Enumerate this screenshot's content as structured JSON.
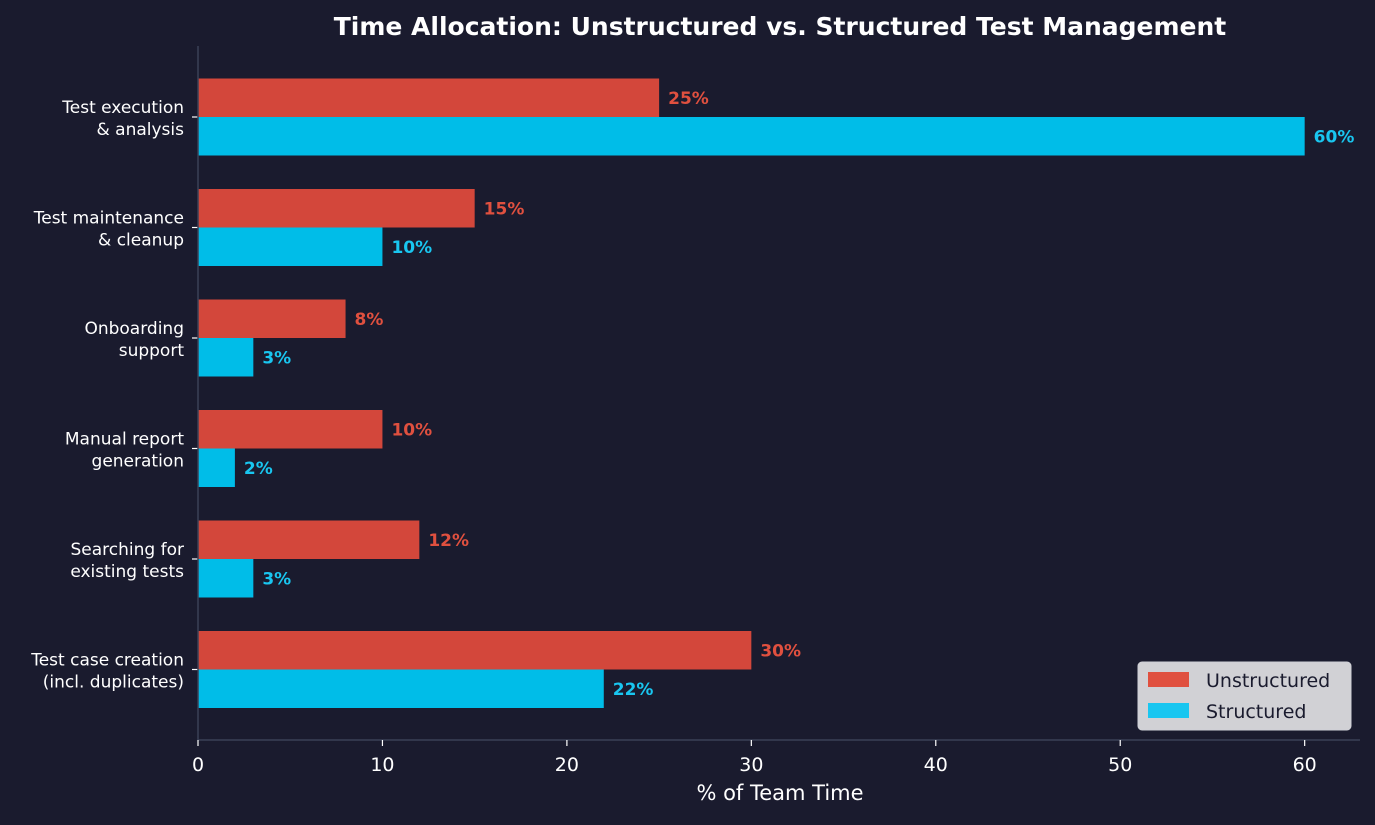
{
  "chart_data": {
    "type": "bar",
    "orientation": "horizontal",
    "title": "Time Allocation: Unstructured vs. Structured Test Management",
    "xlabel": "% of Team Time",
    "ylabel": "",
    "xlim": [
      0,
      63
    ],
    "xticks": [
      0,
      10,
      20,
      30,
      40,
      50,
      60
    ],
    "categories": [
      [
        "Test execution",
        "& analysis"
      ],
      [
        "Test maintenance",
        "& cleanup"
      ],
      [
        "Onboarding",
        "support"
      ],
      [
        "Manual report",
        "generation"
      ],
      [
        "Searching for",
        "existing tests"
      ],
      [
        "Test case creation",
        "(incl. duplicates)"
      ]
    ],
    "series": [
      {
        "name": "Unstructured",
        "color": "#d3473b",
        "label_color": "#e0503f",
        "values": [
          25,
          15,
          8,
          10,
          12,
          30
        ]
      },
      {
        "name": "Structured",
        "color": "#00bde8",
        "label_color": "#19c6f0",
        "values": [
          60,
          10,
          3,
          2,
          3,
          22
        ]
      }
    ],
    "value_suffix": "%",
    "grid": false,
    "legend_position": "bottom-right"
  }
}
